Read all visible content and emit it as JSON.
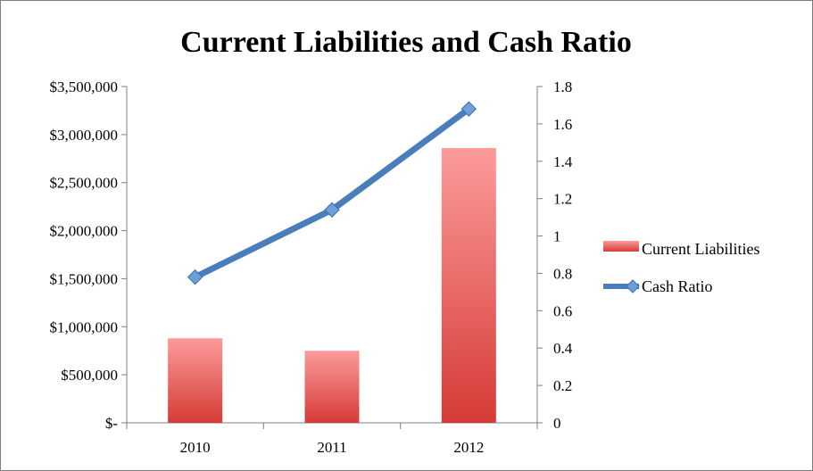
{
  "chart_data": {
    "type": "bar",
    "title": "Current Liabilities and Cash Ratio",
    "categories": [
      "2010",
      "2011",
      "2012"
    ],
    "series": [
      {
        "name": "Current Liabilities",
        "type": "bar",
        "axis": "left",
        "values": [
          880000,
          750000,
          2860000
        ],
        "color": "#d9403a"
      },
      {
        "name": "Cash Ratio",
        "type": "line",
        "axis": "right",
        "marker": "diamond",
        "values": [
          0.78,
          1.14,
          1.68
        ],
        "color": "#4a7ebb"
      }
    ],
    "y_left": {
      "ylim": [
        0,
        3500000
      ],
      "ticks": [
        0,
        500000,
        1000000,
        1500000,
        2000000,
        2500000,
        3000000,
        3500000
      ],
      "tick_labels": [
        "$-",
        "$500,000",
        "$1,000,000",
        "$1,500,000",
        "$2,000,000",
        "$2,500,000",
        "$3,000,000",
        "$3,500,000"
      ]
    },
    "y_right": {
      "ylim": [
        0,
        1.8
      ],
      "ticks": [
        0,
        0.2,
        0.4,
        0.6,
        0.8,
        1,
        1.2,
        1.4,
        1.6,
        1.8
      ],
      "tick_labels": [
        "0",
        "0.2",
        "0.4",
        "0.6",
        "0.8",
        "1",
        "1.2",
        "1.4",
        "1.6",
        "1.8"
      ]
    },
    "grid": false,
    "legend_position": "right"
  }
}
